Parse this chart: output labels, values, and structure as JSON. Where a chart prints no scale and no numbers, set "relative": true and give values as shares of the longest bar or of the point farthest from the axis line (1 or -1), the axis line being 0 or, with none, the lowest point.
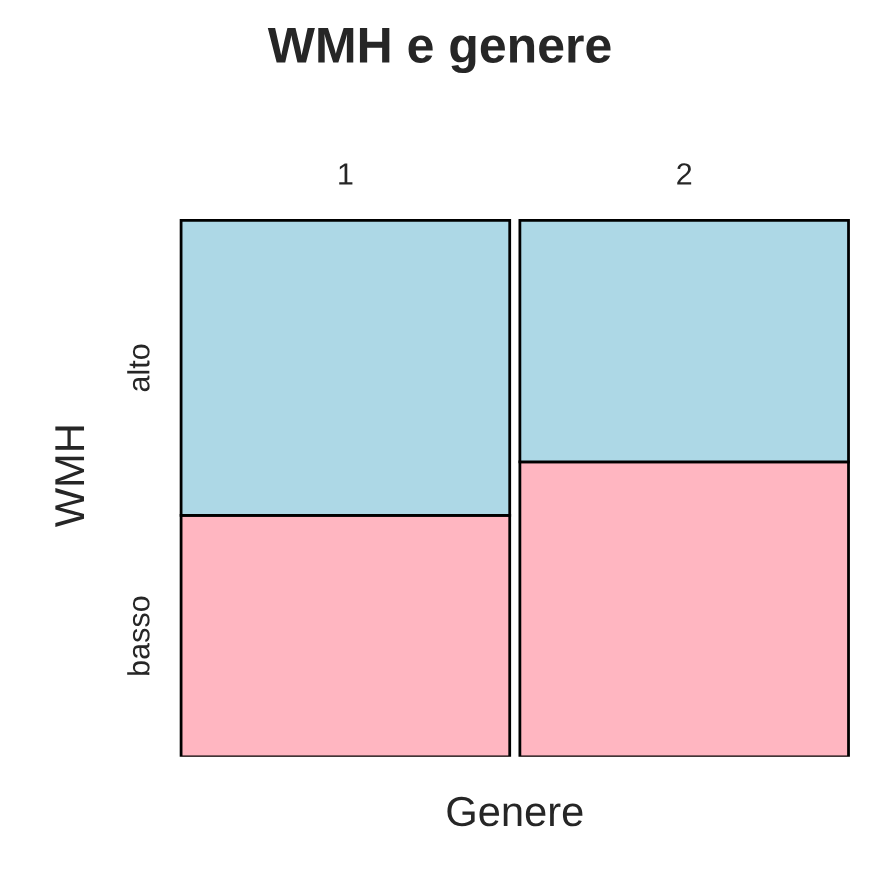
{
  "chart_data": {
    "type": "bar",
    "title": "WMH e genere",
    "xlabel": "Genere",
    "ylabel": "WMH",
    "relative": true,
    "stacked": true,
    "categories": [
      "1",
      "2"
    ],
    "series": [
      {
        "name": "basso",
        "color": "#ffb6c1",
        "values": [
          0.45,
          0.55
        ]
      },
      {
        "name": "alto",
        "color": "#add8e6",
        "values": [
          0.55,
          0.45
        ]
      }
    ]
  }
}
